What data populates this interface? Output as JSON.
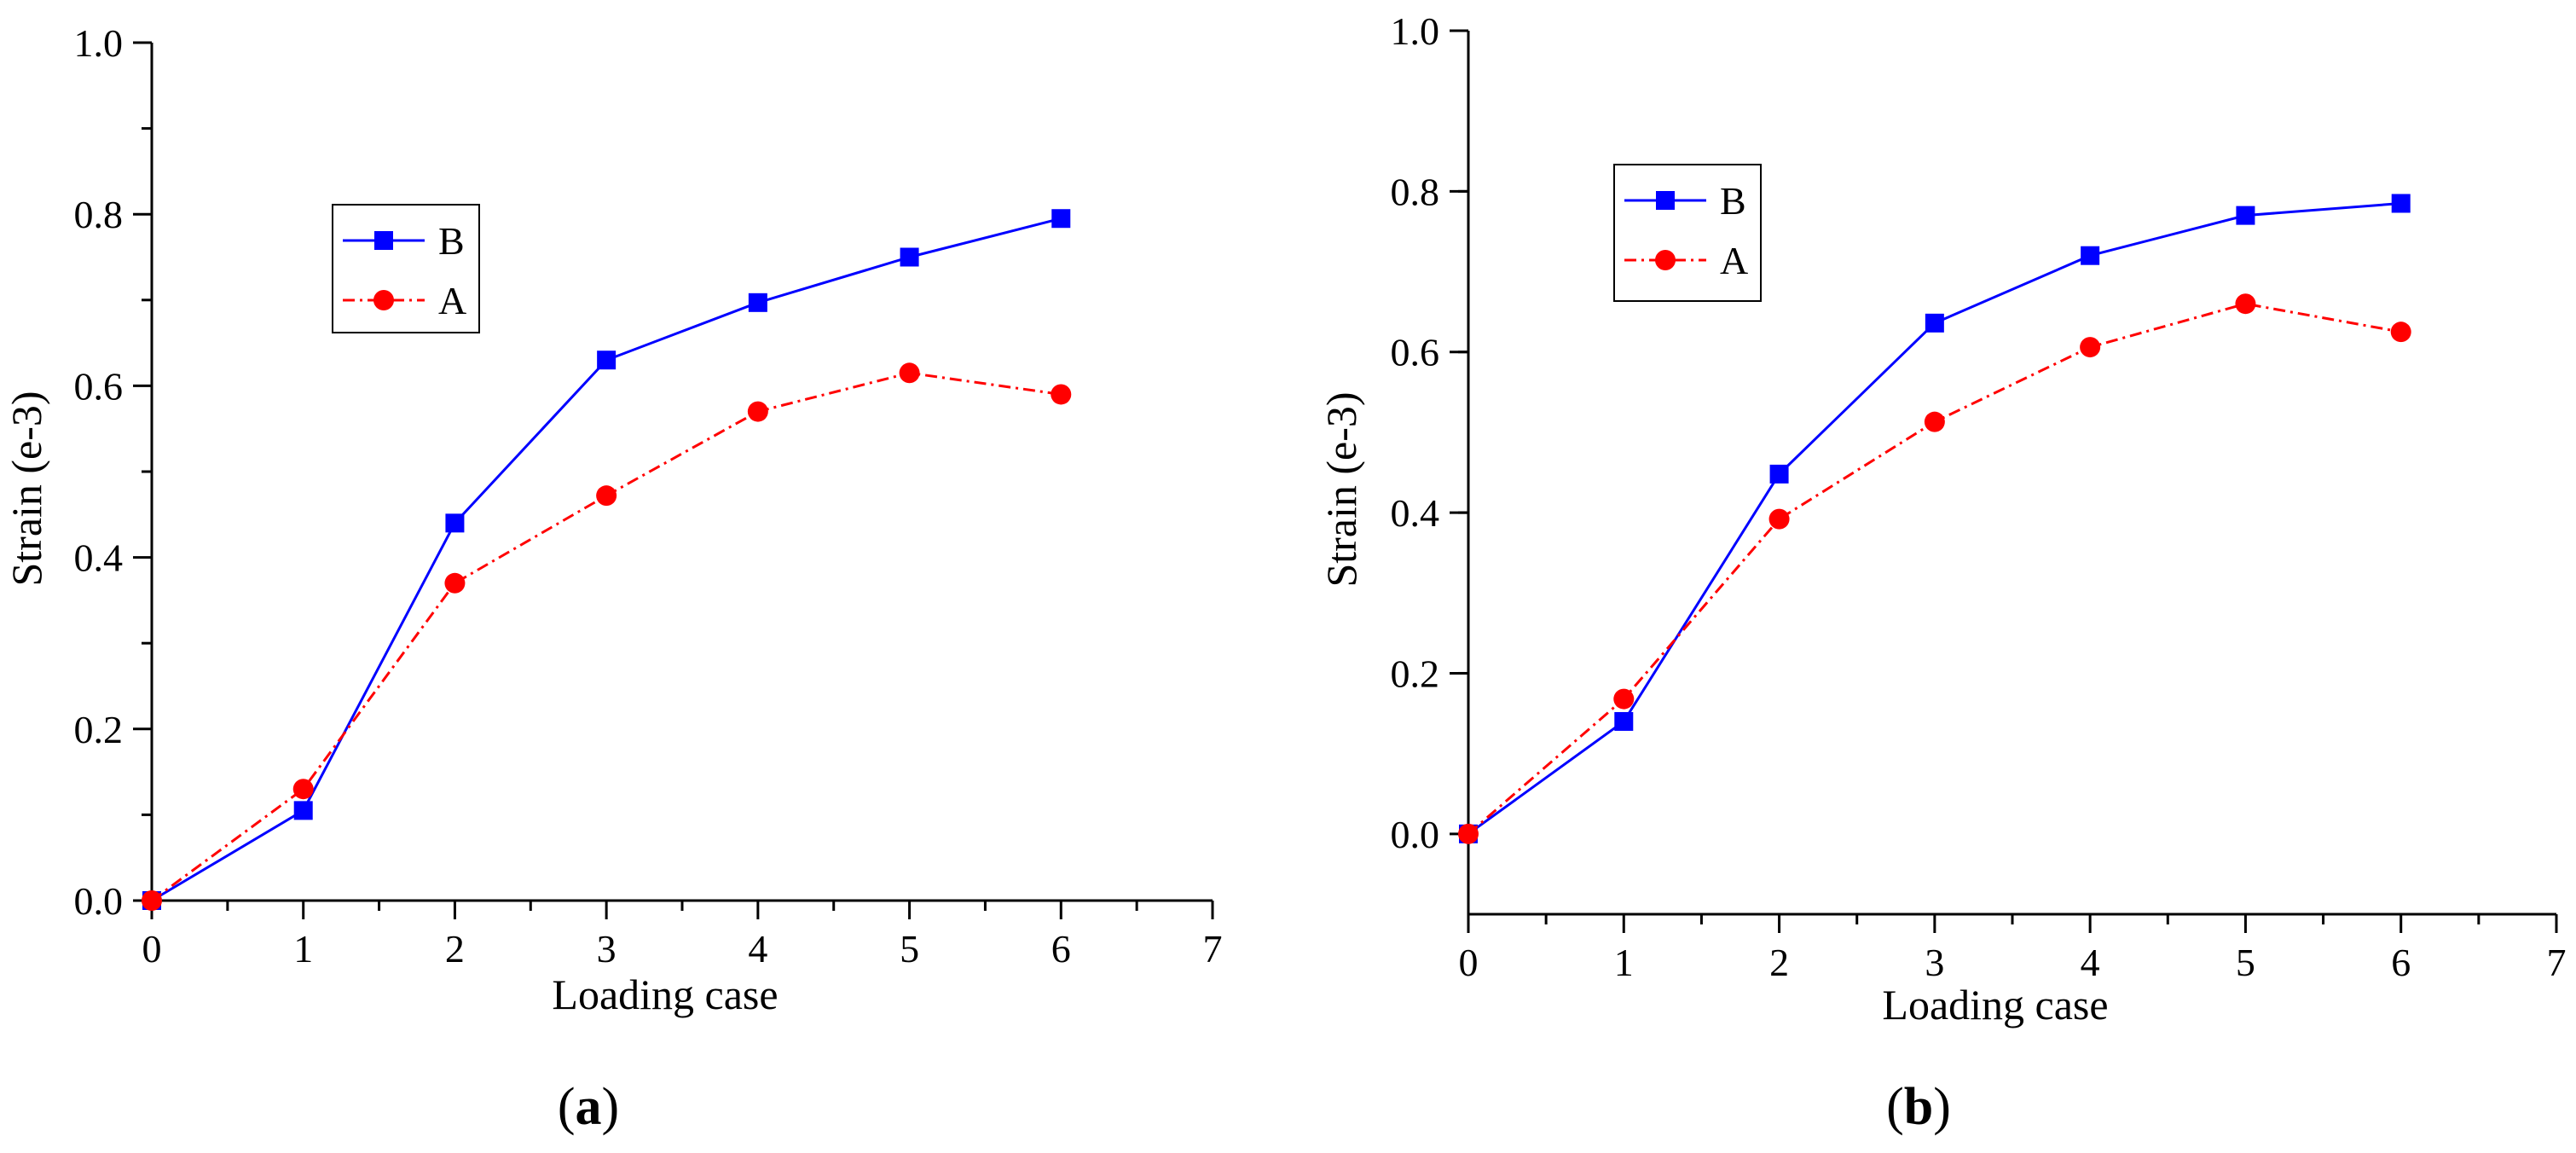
{
  "chart_data": [
    {
      "type": "line",
      "panel_label": "a",
      "xlabel": "Loading case",
      "ylabel": "Strain (e-3)",
      "xlim": [
        0,
        7
      ],
      "ylim": [
        0.0,
        1.0
      ],
      "xticks": [
        "0",
        "1",
        "2",
        "3",
        "4",
        "5",
        "6",
        "7"
      ],
      "yticks": [
        "0.0",
        "0.2",
        "0.4",
        "0.6",
        "0.8",
        "1.0"
      ],
      "legend_position": "upper-left",
      "series": [
        {
          "name": "B",
          "color": "#0000ff",
          "marker": "square",
          "line": "solid",
          "x": [
            0,
            1,
            2,
            3,
            4,
            5,
            6
          ],
          "values": [
            0.0,
            0.105,
            0.44,
            0.63,
            0.697,
            0.75,
            0.795
          ]
        },
        {
          "name": "A",
          "color": "#ff0000",
          "marker": "circle",
          "line": "dash-dot",
          "x": [
            0,
            1,
            2,
            3,
            4,
            5,
            6
          ],
          "values": [
            0.0,
            0.13,
            0.37,
            0.472,
            0.57,
            0.615,
            0.59
          ]
        }
      ]
    },
    {
      "type": "line",
      "panel_label": "b",
      "xlabel": "Loading case",
      "ylabel": "Strain (e-3)",
      "xlim": [
        0,
        7
      ],
      "ylim": [
        -0.1,
        1.0
      ],
      "xticks": [
        "0",
        "1",
        "2",
        "3",
        "4",
        "5",
        "6",
        "7"
      ],
      "yticks": [
        "0.0",
        "0.2",
        "0.4",
        "0.6",
        "0.8",
        "1.0"
      ],
      "legend_position": "upper-left",
      "series": [
        {
          "name": "B",
          "color": "#0000ff",
          "marker": "square",
          "line": "solid",
          "x": [
            0,
            1,
            2,
            3,
            4,
            5,
            6
          ],
          "values": [
            0.0,
            0.14,
            0.448,
            0.636,
            0.72,
            0.77,
            0.785
          ]
        },
        {
          "name": "A",
          "color": "#ff0000",
          "marker": "circle",
          "line": "dash-dot",
          "x": [
            0,
            1,
            2,
            3,
            4,
            5,
            6
          ],
          "values": [
            0.0,
            0.168,
            0.392,
            0.513,
            0.606,
            0.66,
            0.625
          ]
        }
      ]
    }
  ]
}
